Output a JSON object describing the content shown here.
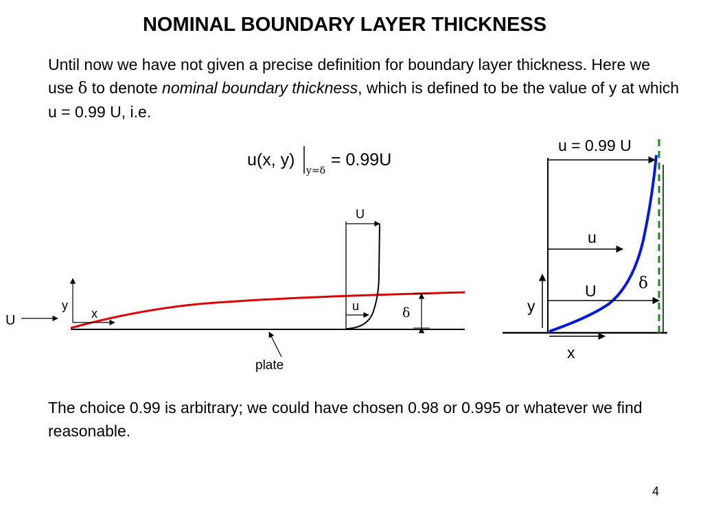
{
  "title": "NOMINAL BOUNDARY LAYER THICKNESS",
  "intro": {
    "part1": "Until now we have not given a precise definition for boundary layer thickness.  Here we use ",
    "delta": "δ",
    "part2": " to denote ",
    "emphasis": "nominal boundary thickness",
    "part3": ", which is defined to be the value of y at which u = 0.99 U, i.e."
  },
  "equation": {
    "lhs": "u(x, y)",
    "subscript": "y=δ",
    "rhs": "= 0.99U"
  },
  "left_diagram": {
    "freestream_label": "U",
    "y_label": "y",
    "x_label": "x",
    "profile_top_label": "U",
    "profile_u_label": "u",
    "delta_label": "δ",
    "plate_label": "plate",
    "boundary_color": "#e00000"
  },
  "right_diagram": {
    "top_label": "u = 0.99 U",
    "u_label": "u",
    "U_label": "U",
    "delta_label": "δ",
    "y_label": "y",
    "x_label": "x",
    "profile_color": "#0018e0",
    "edge_line_color": "#1a8a1a"
  },
  "conclusion": "The choice 0.99 is arbitrary; we could have chosen 0.98 or 0.995 or whatever we find reasonable.",
  "page_number": "4"
}
